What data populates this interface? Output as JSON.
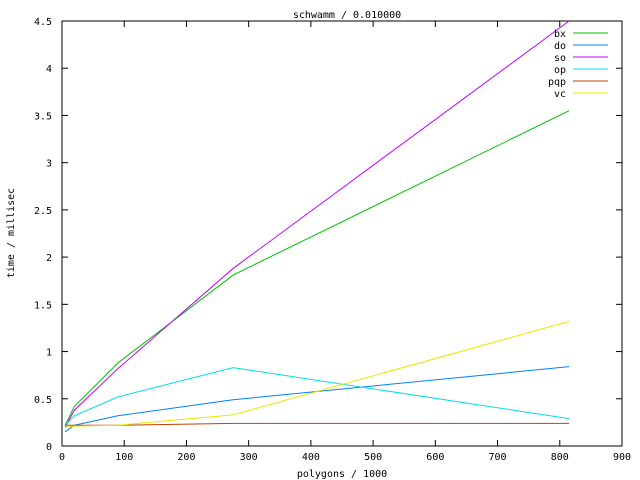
{
  "chart_data": {
    "type": "line",
    "title": "schwamm / 0.010000",
    "xlabel": "polygons / 1000",
    "ylabel": "time / millisec",
    "xlim": [
      0,
      900
    ],
    "ylim": [
      0,
      4.5
    ],
    "xticks": [
      0,
      100,
      200,
      300,
      400,
      500,
      600,
      700,
      800,
      900
    ],
    "yticks": [
      0,
      0.5,
      1,
      1.5,
      2,
      2.5,
      3,
      3.5,
      4,
      4.5
    ],
    "legend_position": "top-right",
    "grid": false,
    "x": [
      5,
      20,
      90,
      275,
      815
    ],
    "series": [
      {
        "name": "bx",
        "color": "#00c000",
        "values": [
          0.22,
          0.42,
          0.88,
          1.81,
          3.55
        ]
      },
      {
        "name": "do",
        "color": "#0080ff",
        "values": [
          0.15,
          0.22,
          0.32,
          0.49,
          0.84
        ]
      },
      {
        "name": "so",
        "color": "#c000ff",
        "values": [
          0.2,
          0.38,
          0.82,
          1.88,
          4.5
        ]
      },
      {
        "name": "op",
        "color": "#00e0e0",
        "values": [
          0.22,
          0.32,
          0.52,
          0.83,
          0.29
        ]
      },
      {
        "name": "pqp",
        "color": "#c04000",
        "values": [
          0.22,
          0.22,
          0.22,
          0.24,
          0.24
        ]
      },
      {
        "name": "vc",
        "color": "#e8e800",
        "values": [
          0.2,
          0.21,
          0.22,
          0.33,
          1.32
        ]
      }
    ]
  }
}
